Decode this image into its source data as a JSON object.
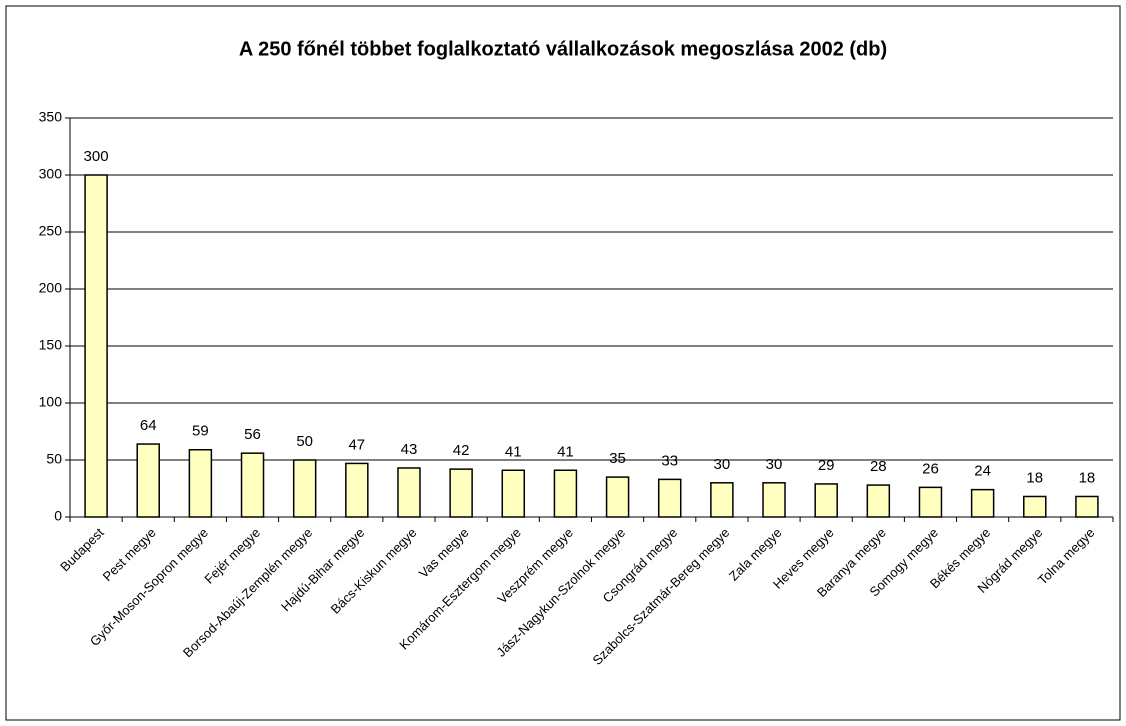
{
  "chart_data": {
    "type": "bar",
    "title": "A 250 főnél többet foglalkoztató vállalkozások megoszlása 2002 (db)",
    "categories": [
      "Budapest",
      "Pest megye",
      "Győr-Moson-Sopron megye",
      "Fejér megye",
      "Borsod-Abaúj-Zemplén megye",
      "Hajdú-Bihar megye",
      "Bács-Kiskun megye",
      "Vas megye",
      "Komárom-Esztergom megye",
      "Veszprém megye",
      "Jász-Nagykun-Szolnok megye",
      "Csongrád megye",
      "Szabolcs-Szatmár-Bereg megye",
      "Zala megye",
      "Heves megye",
      "Baranya megye",
      "Somogy megye",
      "Békés megye",
      "Nógrád megye",
      "Tolna megye"
    ],
    "values": [
      300,
      64,
      59,
      56,
      50,
      47,
      43,
      42,
      41,
      41,
      35,
      33,
      30,
      30,
      29,
      28,
      26,
      24,
      18,
      18
    ],
    "color": "#ffffc0",
    "ylim": [
      0,
      350
    ],
    "yticks": [
      0,
      50,
      100,
      150,
      200,
      250,
      300,
      350
    ],
    "grid": true
  }
}
